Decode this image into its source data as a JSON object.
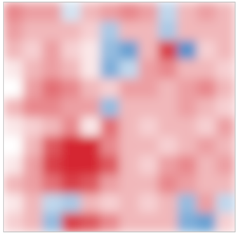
{
  "chart_data": {
    "type": "heatmap",
    "values": [
      [
        0.5,
        0.4,
        0.4,
        -0.2,
        0.3,
        0.4,
        0.5,
        0.4,
        -0.3,
        0.3,
        0.4,
        0.3
      ],
      [
        0.4,
        0.3,
        0.3,
        0.3,
        0.2,
        -0.4,
        0.3,
        0.3,
        -0.4,
        0.3,
        0.3,
        0.3
      ],
      [
        0.3,
        0.2,
        0.4,
        0.2,
        0.1,
        -0.5,
        -0.7,
        0.3,
        0.8,
        -0.8,
        0.2,
        0.3
      ],
      [
        0.1,
        0.3,
        0.4,
        0.3,
        0.1,
        -0.6,
        -0.3,
        0.4,
        0.5,
        0.3,
        0.3,
        0.2
      ],
      [
        0.0,
        0.4,
        0.6,
        0.5,
        0.3,
        0.2,
        0.4,
        0.4,
        0.3,
        0.4,
        0.5,
        0.3
      ],
      [
        0.3,
        0.5,
        0.5,
        0.4,
        0.4,
        -0.5,
        0.3,
        0.3,
        0.3,
        0.4,
        0.3,
        0.2
      ],
      [
        0.1,
        0.2,
        0.3,
        0.5,
        0.1,
        0.6,
        0.3,
        0.2,
        0.3,
        0.3,
        0.2,
        0.4
      ],
      [
        0.0,
        0.3,
        0.7,
        0.9,
        0.9,
        0.5,
        0.3,
        0.3,
        0.2,
        0.3,
        0.4,
        0.3
      ],
      [
        0.1,
        0.4,
        0.8,
        0.9,
        0.9,
        0.7,
        0.3,
        0.2,
        0.4,
        0.5,
        0.3,
        0.4
      ],
      [
        0.3,
        0.4,
        0.6,
        0.8,
        0.7,
        0.4,
        0.3,
        0.3,
        0.5,
        0.4,
        0.3,
        0.3
      ],
      [
        0.1,
        0.3,
        -0.3,
        -0.4,
        0.3,
        0.2,
        0.3,
        0.2,
        0.3,
        -0.5,
        0.4,
        -0.3
      ],
      [
        0.2,
        0.3,
        -0.5,
        0.8,
        0.7,
        0.5,
        0.3,
        0.3,
        0.3,
        -0.6,
        -0.7,
        0.2
      ]
    ],
    "vlim": [
      -1,
      1
    ],
    "colors": [
      "#2a78bf",
      "#ffffff",
      "#d0101a"
    ]
  }
}
